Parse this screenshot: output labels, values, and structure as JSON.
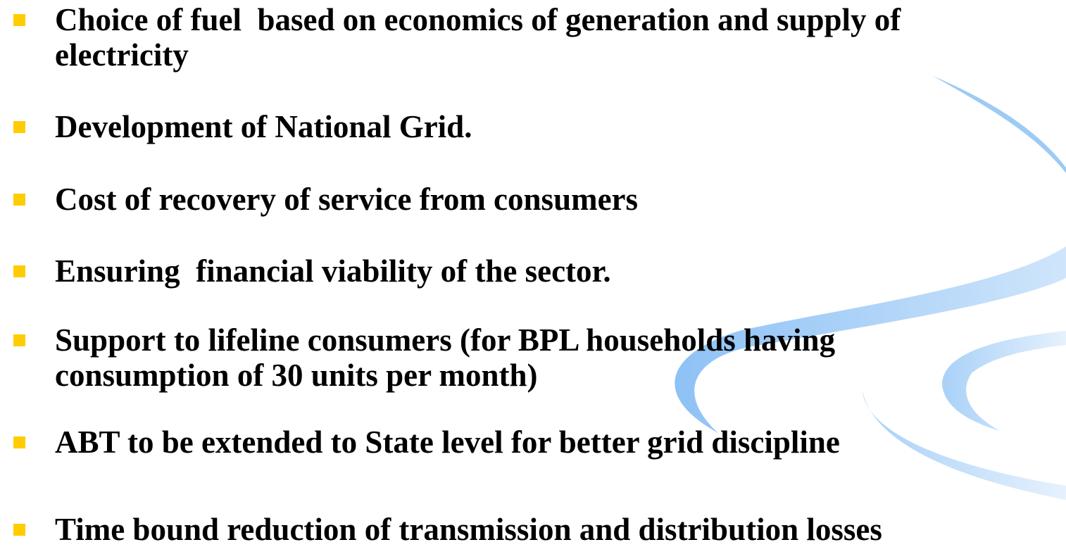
{
  "items": [
    {
      "lines": [
        "Choice of fuel  based on economics of generation and supply of",
        "electricity"
      ]
    },
    {
      "lines": [
        "Development of National Grid."
      ]
    },
    {
      "lines": [
        "Cost of recovery of service from consumers"
      ]
    },
    {
      "lines": [
        "Ensuring  financial viability of the sector."
      ]
    },
    {
      "lines": [
        "Support to lifeline consumers (for BPL households having",
        "consumption of 30 units per month)"
      ]
    },
    {
      "lines": [
        "ABT to be extended to State level for better grid discipline"
      ]
    },
    {
      "lines": [
        "Time bound reduction of transmission and distribution losses"
      ]
    }
  ]
}
